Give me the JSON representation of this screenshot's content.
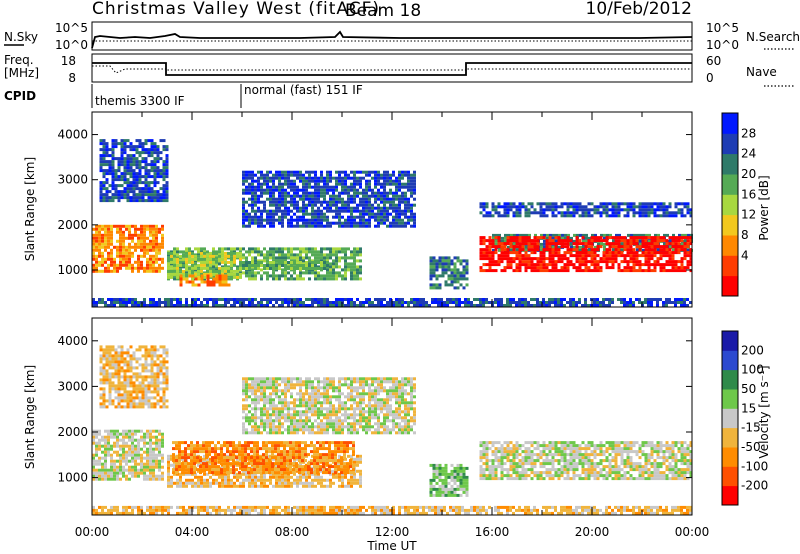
{
  "header": {
    "station": "Christmas Valley West (fitACF)",
    "beam": "Beam 18",
    "date": "10/Feb/2012"
  },
  "nsky_panel": {
    "left_label": "N.Sky",
    "right_label": "N.Search",
    "left_ticks": [
      "10^5",
      "10^0"
    ],
    "right_ticks": [
      "10^5",
      "10^0"
    ]
  },
  "freq_panel": {
    "left_label_1": "Freq.",
    "left_label_2": "[MHz]",
    "right_label": "Nave",
    "left_ticks": [
      "18",
      "8"
    ],
    "right_ticks": [
      "60",
      "0"
    ]
  },
  "cpid": {
    "label": "CPID",
    "segments": [
      {
        "text": "themis 3300 IF",
        "start_hour": 0
      },
      {
        "text": "normal (fast) 151 IF",
        "start_hour": 6
      }
    ]
  },
  "time_axis": {
    "xlabel": "Time UT",
    "ticks": [
      "00:00",
      "04:00",
      "08:00",
      "12:00",
      "16:00",
      "20:00",
      "00:00"
    ]
  },
  "chart_data": [
    {
      "type": "heatmap",
      "name": "power",
      "xlabel": "Time UT",
      "ylabel": "Slant Range [km]",
      "x_range_hours": [
        0,
        24
      ],
      "ylim": [
        180,
        4500
      ],
      "yticks": [
        1000,
        2000,
        3000,
        4000
      ],
      "ytick_labels": [
        "1000",
        "2000",
        "3000",
        "4000"
      ],
      "colorbar": {
        "label": "Power [dB]",
        "tick_labels": [
          "28",
          "24",
          "20",
          "16",
          "12",
          "8",
          "4"
        ],
        "colors": [
          "#0018ff",
          "#1e3cb4",
          "#2f7a69",
          "#55aa55",
          "#a8d840",
          "#f2c81e",
          "#ff8800",
          "#ff3c00",
          "#ff0000"
        ]
      },
      "bands": [
        {
          "t0": 0.0,
          "t1": 2.9,
          "r0": 950,
          "r1": 2000,
          "level": 6
        },
        {
          "t0": 0.3,
          "t1": 3.1,
          "r0": 2500,
          "r1": 3900,
          "level": 1
        },
        {
          "t0": 3.0,
          "t1": 10.8,
          "r0": 750,
          "r1": 1500,
          "level": 3
        },
        {
          "t0": 3.0,
          "t1": 6.0,
          "r0": 800,
          "r1": 1400,
          "level": 4
        },
        {
          "t0": 3.5,
          "t1": 5.5,
          "r0": 650,
          "r1": 900,
          "level": 6
        },
        {
          "t0": 6.0,
          "t1": 9.5,
          "r0": 1000,
          "r1": 1200,
          "level": 3
        },
        {
          "t0": 6.0,
          "t1": 13.0,
          "r0": 1950,
          "r1": 3200,
          "level": 1
        },
        {
          "t0": 13.5,
          "t1": 15.0,
          "r0": 600,
          "r1": 1300,
          "level": 2
        },
        {
          "t0": 0.0,
          "t1": 24.0,
          "r0": 200,
          "r1": 380,
          "level": 1
        },
        {
          "t0": 15.5,
          "t1": 24.0,
          "r0": 2150,
          "r1": 2500,
          "level": 1
        },
        {
          "t0": 16.0,
          "t1": 24.0,
          "r0": 1400,
          "r1": 1800,
          "level": 2
        },
        {
          "t0": 15.5,
          "t1": 24.0,
          "r0": 950,
          "r1": 1750,
          "level": 8
        }
      ]
    },
    {
      "type": "heatmap",
      "name": "velocity",
      "xlabel": "Time UT",
      "ylabel": "Slant Range [km]",
      "x_range_hours": [
        0,
        24
      ],
      "ylim": [
        180,
        4500
      ],
      "yticks": [
        1000,
        2000,
        3000,
        4000
      ],
      "ytick_labels": [
        "1000",
        "2000",
        "3000",
        "4000"
      ],
      "colorbar": {
        "label": "Velocity [m s⁻¹]",
        "tick_labels": [
          "200",
          "100",
          "50",
          "15",
          "-15",
          "-50",
          "-100",
          "-200"
        ],
        "colors": [
          "#1a1aa8",
          "#2c4ad0",
          "#2f8a4a",
          "#6ec84a",
          "#c8c8c8",
          "#f0b43c",
          "#ff8c00",
          "#ff5000",
          "#ff0000"
        ]
      },
      "bands": [
        {
          "t0": 0.0,
          "t1": 2.9,
          "r0": 950,
          "r1": 2050,
          "level": 4
        },
        {
          "t0": 0.3,
          "t1": 3.1,
          "r0": 2500,
          "r1": 3900,
          "level": 5
        },
        {
          "t0": 3.0,
          "t1": 10.8,
          "r0": 750,
          "r1": 1500,
          "level": 5
        },
        {
          "t0": 3.2,
          "t1": 10.5,
          "r0": 1050,
          "r1": 1800,
          "level": 6
        },
        {
          "t0": 6.0,
          "t1": 13.0,
          "r0": 1950,
          "r1": 3200,
          "level": 4
        },
        {
          "t0": 13.5,
          "t1": 15.0,
          "r0": 600,
          "r1": 1300,
          "level": 3
        },
        {
          "t0": 0.0,
          "t1": 24.0,
          "r0": 200,
          "r1": 380,
          "level": 5
        },
        {
          "t0": 15.5,
          "t1": 24.0,
          "r0": 950,
          "r1": 1800,
          "level": 4
        }
      ]
    }
  ]
}
